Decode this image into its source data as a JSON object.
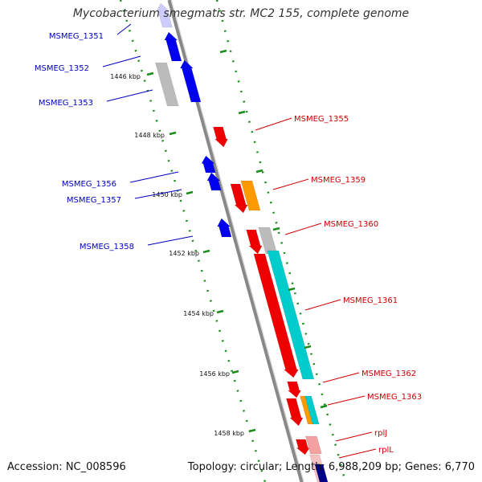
{
  "title": "Mycobacterium smegmatis str. MC2 155, complete genome",
  "footer": {
    "accession": "Accession: NC_008596",
    "summary": "Topology: circular; Length: 6,988,209 bp; Genes: 6,770"
  },
  "colors": {
    "backbone": "#888888",
    "tick": "#1a8c1a",
    "forward_label": "#cc0000",
    "reverse_label": "#0000bb",
    "forward_cds": "#ee0000",
    "reverse_cds": "#0000ee",
    "orange": "#ff9900",
    "cyan": "#00cccc",
    "grey": "#bbbbbb"
  },
  "scale_labels": [
    "1446 kbp",
    "1448 kbp",
    "1450 kbp",
    "1452 kbp",
    "1454 kbp",
    "1456 kbp",
    "1458 kbp"
  ],
  "reverse_genes": [
    "MSMEG_1351",
    "MSMEG_1352",
    "MSMEG_1353",
    "MSMEG_1356",
    "MSMEG_1357",
    "MSMEG_1358"
  ],
  "forward_genes": [
    "MSMEG_1355",
    "MSMEG_1359",
    "MSMEG_1360",
    "MSMEG_1361",
    "MSMEG_1362",
    "MSMEG_1363",
    "rplJ",
    "rplL"
  ]
}
